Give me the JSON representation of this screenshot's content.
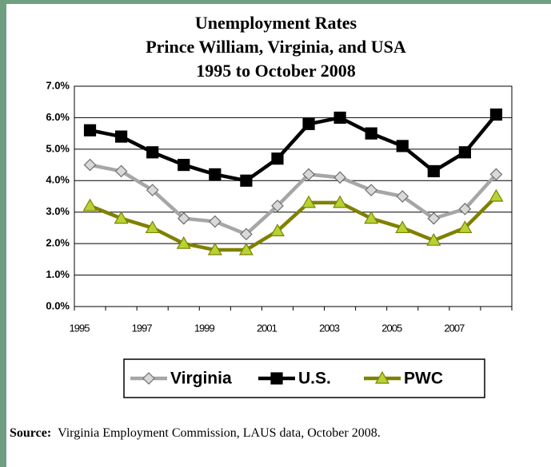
{
  "chart_data": {
    "type": "line",
    "title": [
      "Unemployment Rates",
      "Prince William, Virginia, and USA",
      "1995 to October 2008"
    ],
    "categories": [
      "1995",
      null,
      "1997",
      null,
      "1999",
      null,
      "2001",
      null,
      "2003",
      null,
      "2005",
      null,
      "2007",
      null
    ],
    "series": [
      {
        "name": "Virginia",
        "color": "#a6a6a6",
        "marker": "diamond",
        "marker_fill": "#d9d9d9",
        "values": [
          4.5,
          4.3,
          3.7,
          2.8,
          2.7,
          2.3,
          3.2,
          4.2,
          4.1,
          3.7,
          3.5,
          2.8,
          3.1,
          4.2
        ]
      },
      {
        "name": "U.S.",
        "color": "#000000",
        "marker": "square",
        "marker_fill": "#000000",
        "values": [
          5.6,
          5.4,
          4.9,
          4.5,
          4.2,
          4.0,
          4.7,
          5.8,
          6.0,
          5.5,
          5.1,
          4.3,
          4.9,
          6.1
        ]
      },
      {
        "name": "PWC",
        "color": "#808000",
        "marker": "triangle",
        "marker_fill": "#b5d334",
        "values": [
          3.2,
          2.8,
          2.5,
          2.0,
          1.8,
          1.8,
          2.4,
          3.3,
          3.3,
          2.8,
          2.5,
          2.1,
          2.5,
          3.5
        ]
      }
    ],
    "ylim": [
      0,
      7
    ],
    "yticks": [
      {
        "value": 0,
        "label": "0.0%"
      },
      {
        "value": 1,
        "label": "1.0%"
      },
      {
        "value": 2,
        "label": "2.0%"
      },
      {
        "value": 3,
        "label": "3.0%"
      },
      {
        "value": 4,
        "label": "4.0%"
      },
      {
        "value": 5,
        "label": "5.0%"
      },
      {
        "value": 6,
        "label": "6.0%"
      },
      {
        "value": 7,
        "label": "7.0%"
      }
    ],
    "grid": true,
    "legend": "bottom"
  },
  "source": {
    "label": "Source:",
    "text": "Virginia Employment Commission, LAUS data, October 2008."
  }
}
